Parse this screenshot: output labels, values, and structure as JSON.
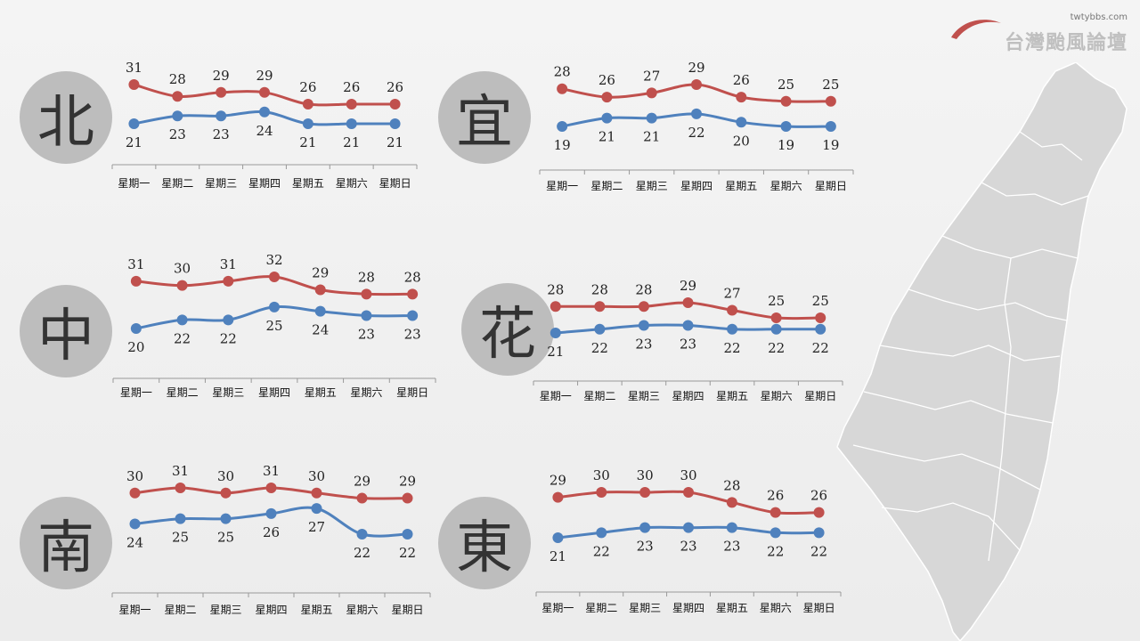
{
  "logo": {
    "url": "twtybbs.com",
    "name": "台灣颱風論壇"
  },
  "colors": {
    "high": "#c0504d",
    "low": "#4f81bd",
    "badge": "#bdbdbd",
    "map": "#d7d7d7"
  },
  "chart_data": [
    {
      "type": "line",
      "region": "北",
      "categories": [
        "星期一",
        "星期二",
        "星期三",
        "星期四",
        "星期五",
        "星期六",
        "星期日"
      ],
      "series": [
        {
          "values": [
            31,
            28,
            29,
            29,
            26,
            26,
            26
          ]
        },
        {
          "values": [
            21,
            23,
            23,
            24,
            21,
            21,
            21
          ]
        }
      ]
    },
    {
      "type": "line",
      "region": "宜",
      "categories": [
        "星期一",
        "星期二",
        "星期三",
        "星期四",
        "星期五",
        "星期六",
        "星期日"
      ],
      "series": [
        {
          "values": [
            28,
            26,
            27,
            29,
            26,
            25,
            25
          ]
        },
        {
          "values": [
            19,
            21,
            21,
            22,
            20,
            19,
            19
          ]
        }
      ]
    },
    {
      "type": "line",
      "region": "中",
      "categories": [
        "星期一",
        "星期二",
        "星期三",
        "星期四",
        "星期五",
        "星期六",
        "星期日"
      ],
      "series": [
        {
          "values": [
            31,
            30,
            31,
            32,
            29,
            28,
            28
          ]
        },
        {
          "values": [
            20,
            22,
            22,
            25,
            24,
            23,
            23
          ]
        }
      ]
    },
    {
      "type": "line",
      "region": "花",
      "categories": [
        "星期一",
        "星期二",
        "星期三",
        "星期四",
        "星期五",
        "星期六",
        "星期日"
      ],
      "series": [
        {
          "values": [
            28,
            28,
            28,
            29,
            27,
            25,
            25
          ]
        },
        {
          "values": [
            21,
            22,
            23,
            23,
            22,
            22,
            22
          ]
        }
      ]
    },
    {
      "type": "line",
      "region": "南",
      "categories": [
        "星期一",
        "星期二",
        "星期三",
        "星期四",
        "星期五",
        "星期六",
        "星期日"
      ],
      "series": [
        {
          "values": [
            30,
            31,
            30,
            31,
            30,
            29,
            29
          ]
        },
        {
          "values": [
            24,
            25,
            25,
            26,
            27,
            22,
            22
          ]
        }
      ]
    },
    {
      "type": "line",
      "region": "東",
      "categories": [
        "星期一",
        "星期二",
        "星期三",
        "星期四",
        "星期五",
        "星期六",
        "星期日"
      ],
      "series": [
        {
          "values": [
            29,
            30,
            30,
            30,
            28,
            26,
            26
          ]
        },
        {
          "values": [
            21,
            22,
            23,
            23,
            23,
            22,
            22
          ]
        }
      ]
    }
  ]
}
